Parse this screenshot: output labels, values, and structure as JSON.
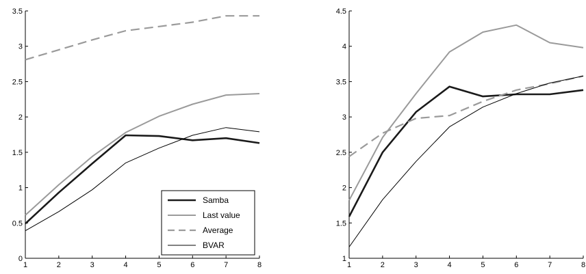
{
  "chart_data": [
    {
      "type": "line",
      "x": [
        1,
        2,
        3,
        4,
        5,
        6,
        7,
        8
      ],
      "xlim": [
        1,
        8
      ],
      "ylim": [
        0,
        3.5
      ],
      "xticks": [
        "1",
        "2",
        "3",
        "4",
        "5",
        "6",
        "7",
        "8"
      ],
      "yticks": [
        "0",
        "0.5",
        "1",
        "1.5",
        "2",
        "2.5",
        "3",
        "3.5"
      ],
      "grid": false,
      "legend_position": "bottom-right",
      "series": [
        {
          "name": "Samba",
          "style": "thick",
          "color": "#1a1a1a",
          "values": [
            0.49,
            0.93,
            1.34,
            1.74,
            1.73,
            1.67,
            1.7,
            1.63
          ]
        },
        {
          "name": "Last value",
          "style": "solid",
          "color": "#9a9a9a",
          "values": [
            0.61,
            1.04,
            1.44,
            1.78,
            2.01,
            2.18,
            2.31,
            2.33
          ]
        },
        {
          "name": "Average",
          "style": "dashed",
          "color": "#9a9a9a",
          "values": [
            2.81,
            2.95,
            3.09,
            3.22,
            3.28,
            3.34,
            3.43,
            3.43
          ]
        },
        {
          "name": "BVAR",
          "style": "thin",
          "color": "#000000",
          "values": [
            0.39,
            0.66,
            0.97,
            1.35,
            1.56,
            1.74,
            1.85,
            1.79
          ]
        }
      ]
    },
    {
      "type": "line",
      "x": [
        1,
        2,
        3,
        4,
        5,
        6,
        7,
        8
      ],
      "xlim": [
        1,
        8
      ],
      "ylim": [
        1,
        4.5
      ],
      "xticks": [
        "1",
        "2",
        "3",
        "4",
        "5",
        "6",
        "7",
        "8"
      ],
      "yticks": [
        "1",
        "1.5",
        "2",
        "2.5",
        "3",
        "3.5",
        "4",
        "4.5"
      ],
      "grid": false,
      "series": [
        {
          "name": "Samba",
          "style": "thick",
          "color": "#1a1a1a",
          "values": [
            1.59,
            2.5,
            3.07,
            3.43,
            3.29,
            3.32,
            3.32,
            3.38
          ]
        },
        {
          "name": "Last value",
          "style": "solid",
          "color": "#9a9a9a",
          "values": [
            1.82,
            2.71,
            3.33,
            3.92,
            4.2,
            4.3,
            4.05,
            3.98
          ]
        },
        {
          "name": "Average",
          "style": "dashed",
          "color": "#9a9a9a",
          "values": [
            2.44,
            2.77,
            2.98,
            3.02,
            3.22,
            3.38,
            3.47,
            3.58
          ]
        },
        {
          "name": "BVAR",
          "style": "thin",
          "color": "#000000",
          "values": [
            1.16,
            1.83,
            2.37,
            2.86,
            3.14,
            3.33,
            3.48,
            3.58
          ]
        }
      ]
    }
  ]
}
